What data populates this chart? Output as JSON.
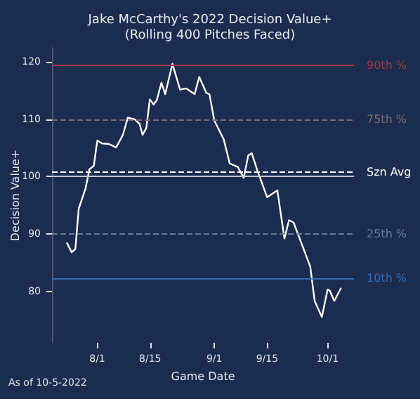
{
  "chart_data": {
    "type": "line",
    "title": "Jake McCarthy's 2022 Decision Value+\n(Rolling 400 Pitches Faced)",
    "xlabel": "Game Date",
    "ylabel": "Decision Value+",
    "x": [
      "2022-07-24T00:00",
      "2022-07-25T05:00",
      "2022-07-26T05:00",
      "2022-07-27T02:00",
      "2022-07-28T22:00",
      "2022-07-29T22:00",
      "2022-07-31T02:00",
      "2022-08-01T00:00",
      "2022-08-02T07:00",
      "2022-08-04T02:00",
      "2022-08-06T00:00",
      "2022-08-07T19:00",
      "2022-08-09T02:00",
      "2022-08-10T22:00",
      "2022-08-12T05:00",
      "2022-08-13T00:00",
      "2022-08-14T00:00",
      "2022-08-14T22:00",
      "2022-08-15T22:00",
      "2022-08-16T19:00",
      "2022-08-18T00:00",
      "2022-08-19T00:00",
      "2022-08-20T22:00",
      "2022-08-22T22:00",
      "2022-08-24T14:00",
      "2022-08-26T19:00",
      "2022-08-28T00:00",
      "2022-08-29T22:00",
      "2022-08-30T17:00",
      "2022-09-01T00:00",
      "2022-09-03T12:00",
      "2022-09-05T02:00",
      "2022-09-07T05:00",
      "2022-09-08T19:00",
      "2022-09-10T00:00",
      "2022-09-10T22:00",
      "2022-09-12T12:00",
      "2022-09-15T00:00",
      "2022-09-17T17:00",
      "2022-09-19T14:00",
      "2022-09-20T19:00",
      "2022-09-22T00:00",
      "2022-09-26T10:00",
      "2022-09-27T14:00",
      "2022-09-29T12:00",
      "2022-10-01T00:00",
      "2022-10-01T14:00",
      "2022-10-02T19:00",
      "2022-10-04T12:00"
    ],
    "series": [
      {
        "color": "#ffffff",
        "values": [
          88.4,
          86.8,
          87.4,
          94.4,
          98.0,
          101.3,
          101.9,
          106.3,
          105.8,
          105.7,
          105.1,
          107.3,
          110.3,
          110.0,
          109.2,
          107.3,
          108.5,
          113.5,
          112.6,
          113.4,
          116.4,
          114.4,
          119.7,
          115.2,
          115.4,
          114.4,
          117.4,
          114.6,
          114.4,
          109.8,
          106.5,
          102.3,
          101.7,
          99.8,
          103.7,
          104.1,
          100.9,
          96.4,
          97.6,
          89.2,
          92.4,
          92.0,
          84.3,
          78.3,
          75.5,
          80.3,
          80.1,
          78.3,
          80.5
        ]
      }
    ],
    "xlim": [
      "2022-07-20",
      "2022-10-08"
    ],
    "xticks": [
      {
        "value": "2022-08-01",
        "label": "8/1"
      },
      {
        "value": "2022-08-15",
        "label": "8/15"
      },
      {
        "value": "2022-09-01",
        "label": "9/1"
      },
      {
        "value": "2022-09-15",
        "label": "9/15"
      },
      {
        "value": "2022-10-01",
        "label": "10/1"
      }
    ],
    "ylim": [
      71,
      122.5
    ],
    "yticks": [
      80,
      90,
      100,
      110,
      120
    ],
    "ref_lines": [
      {
        "axis": "y",
        "value": 119.4,
        "label": "90th %",
        "color": "#9b3a45",
        "line_style": "solid"
      },
      {
        "axis": "y",
        "value": 110,
        "label": "75th %",
        "color": "#7a6a78",
        "line_style": "dashed"
      },
      {
        "axis": "y",
        "value": 100.8,
        "label": "Szn Avg",
        "color": "#ffffff",
        "line_style": "dashed"
      },
      {
        "axis": "y",
        "value": 100,
        "label": null,
        "color": "#c4c8d4",
        "line_style": "solid"
      },
      {
        "axis": "y",
        "value": 90,
        "label": "25th %",
        "color": "#6b7b9c",
        "line_style": "dashed"
      },
      {
        "axis": "y",
        "value": 82.3,
        "label": "10th %",
        "color": "#2f6fb8",
        "line_style": "solid"
      }
    ],
    "annotations": [
      "As of 10-5-2022"
    ],
    "marker": "none",
    "line_style": "solid",
    "grid": false
  }
}
